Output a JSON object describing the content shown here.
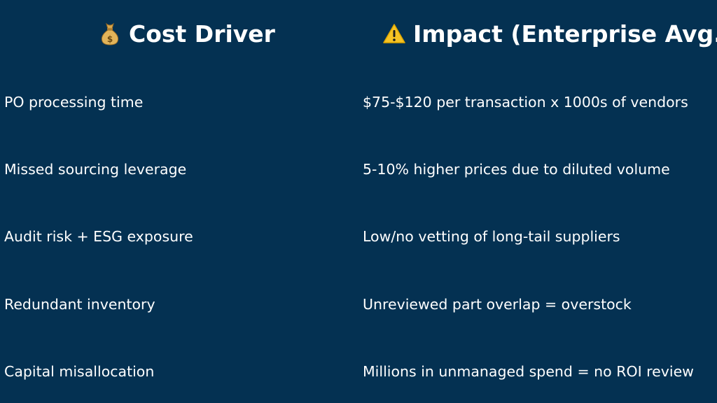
{
  "headers": {
    "left": {
      "icon": "money-bag-icon",
      "label": "Cost Driver"
    },
    "right": {
      "icon": "warning-icon",
      "label": "Impact (Enterprise Avg.)"
    }
  },
  "rows": [
    {
      "driver": "PO processing time",
      "impact": "$75-$120 per transaction x 1000s of vendors"
    },
    {
      "driver": "Missed sourcing leverage",
      "impact": "5-10% higher prices due to diluted volume"
    },
    {
      "driver": "Audit risk + ESG exposure",
      "impact": "Low/no vetting of long-tail suppliers"
    },
    {
      "driver": "Redundant inventory",
      "impact": "Unreviewed part overlap = overstock"
    },
    {
      "driver": "Capital misallocation",
      "impact": "Millions in unmanaged spend = no ROI review"
    }
  ],
  "colors": {
    "background": "#043152",
    "text": "#ffffff",
    "money_bag": "#e2b45a",
    "warning": "#f6c324"
  }
}
